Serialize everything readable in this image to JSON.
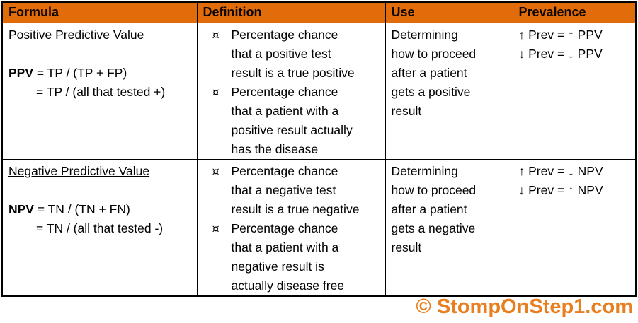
{
  "table": {
    "bullet_glyph": "¤",
    "headers": [
      "Formula",
      "Definition",
      "Use",
      "Prevalence"
    ],
    "rows": [
      {
        "formula": {
          "title": "Positive Predictive Value",
          "abbr": "PPV",
          "eq1_rest": " = TP / (TP + FP)",
          "eq2": "= TP / (all that tested +)"
        },
        "definition": [
          "Percentage chance\nthat a positive test\nresult is a true positive",
          "Percentage chance\nthat a patient with a\npositive result actually\nhas the disease"
        ],
        "use": "Determining\nhow to proceed\nafter a patient\ngets a positive\nresult",
        "prevalence": [
          "↑ Prev = ↑ PPV",
          "↓ Prev = ↓ PPV"
        ]
      },
      {
        "formula": {
          "title": "Negative Predictive Value",
          "abbr": "NPV",
          "eq1_rest": " = TN / (TN + FN)",
          "eq2": "= TN / (all that tested -)"
        },
        "definition": [
          "Percentage chance\nthat a negative test\nresult is a true negative",
          "Percentage chance\nthat a patient with a\nnegative result is\nactually disease free"
        ],
        "use": "Determining\nhow to proceed\nafter a patient\ngets a negative\nresult",
        "prevalence": [
          "↑ Prev = ↓ NPV",
          "↓ Prev = ↑ NPV"
        ]
      }
    ]
  },
  "watermark": {
    "text": "© StompOnStep1.com"
  },
  "colors": {
    "header_bg": "#E36C0A",
    "border": "#000000",
    "body_text": "#000000",
    "watermark": "#E87E1E"
  }
}
